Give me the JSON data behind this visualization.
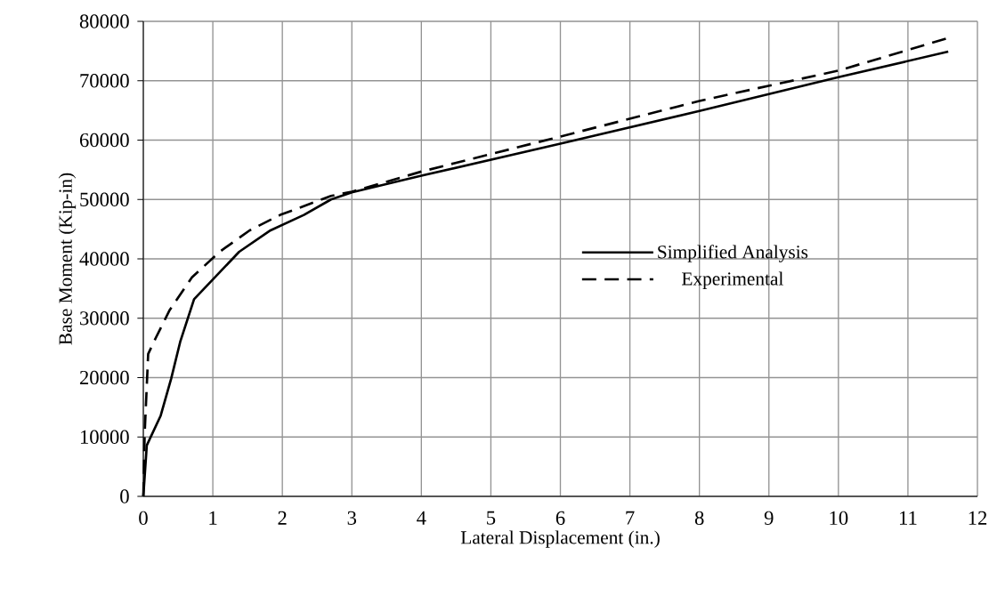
{
  "chart_data": {
    "type": "line",
    "xlabel": "Lateral Displacement (in.)",
    "ylabel": "Base Moment (Kip-in)",
    "xlim": [
      0,
      12
    ],
    "ylim": [
      0,
      80000
    ],
    "xticks": [
      0,
      1,
      2,
      3,
      4,
      5,
      6,
      7,
      8,
      9,
      10,
      11,
      12
    ],
    "yticks": [
      0,
      10000,
      20000,
      30000,
      40000,
      50000,
      60000,
      70000,
      80000
    ],
    "grid": true,
    "legend": "right",
    "marker": "none",
    "series": [
      {
        "name": "Simplified Analysis",
        "color": "#000000",
        "line_style": "solid",
        "x": [
          0,
          0.05,
          0.25,
          0.4,
          0.53,
          0.73,
          1.38,
          1.83,
          2.31,
          2.7,
          3.0,
          4,
          6,
          8,
          10,
          11.58
        ],
        "values": [
          0,
          8600,
          13600,
          19800,
          26000,
          33200,
          41200,
          44800,
          47400,
          50000,
          51200,
          54000,
          59400,
          64900,
          70600,
          74900
        ]
      },
      {
        "name": "Experimental",
        "color": "#000000",
        "line_style": "dashed",
        "x": [
          0,
          0.02,
          0.07,
          0.18,
          0.38,
          0.7,
          1.1,
          1.53,
          1.97,
          2.7,
          3.0,
          4,
          6,
          8,
          10,
          11.58
        ],
        "values": [
          0,
          10700,
          24000,
          26700,
          31400,
          36900,
          41200,
          44800,
          47400,
          50600,
          51300,
          54700,
          60600,
          66600,
          71700,
          77200
        ]
      }
    ]
  }
}
